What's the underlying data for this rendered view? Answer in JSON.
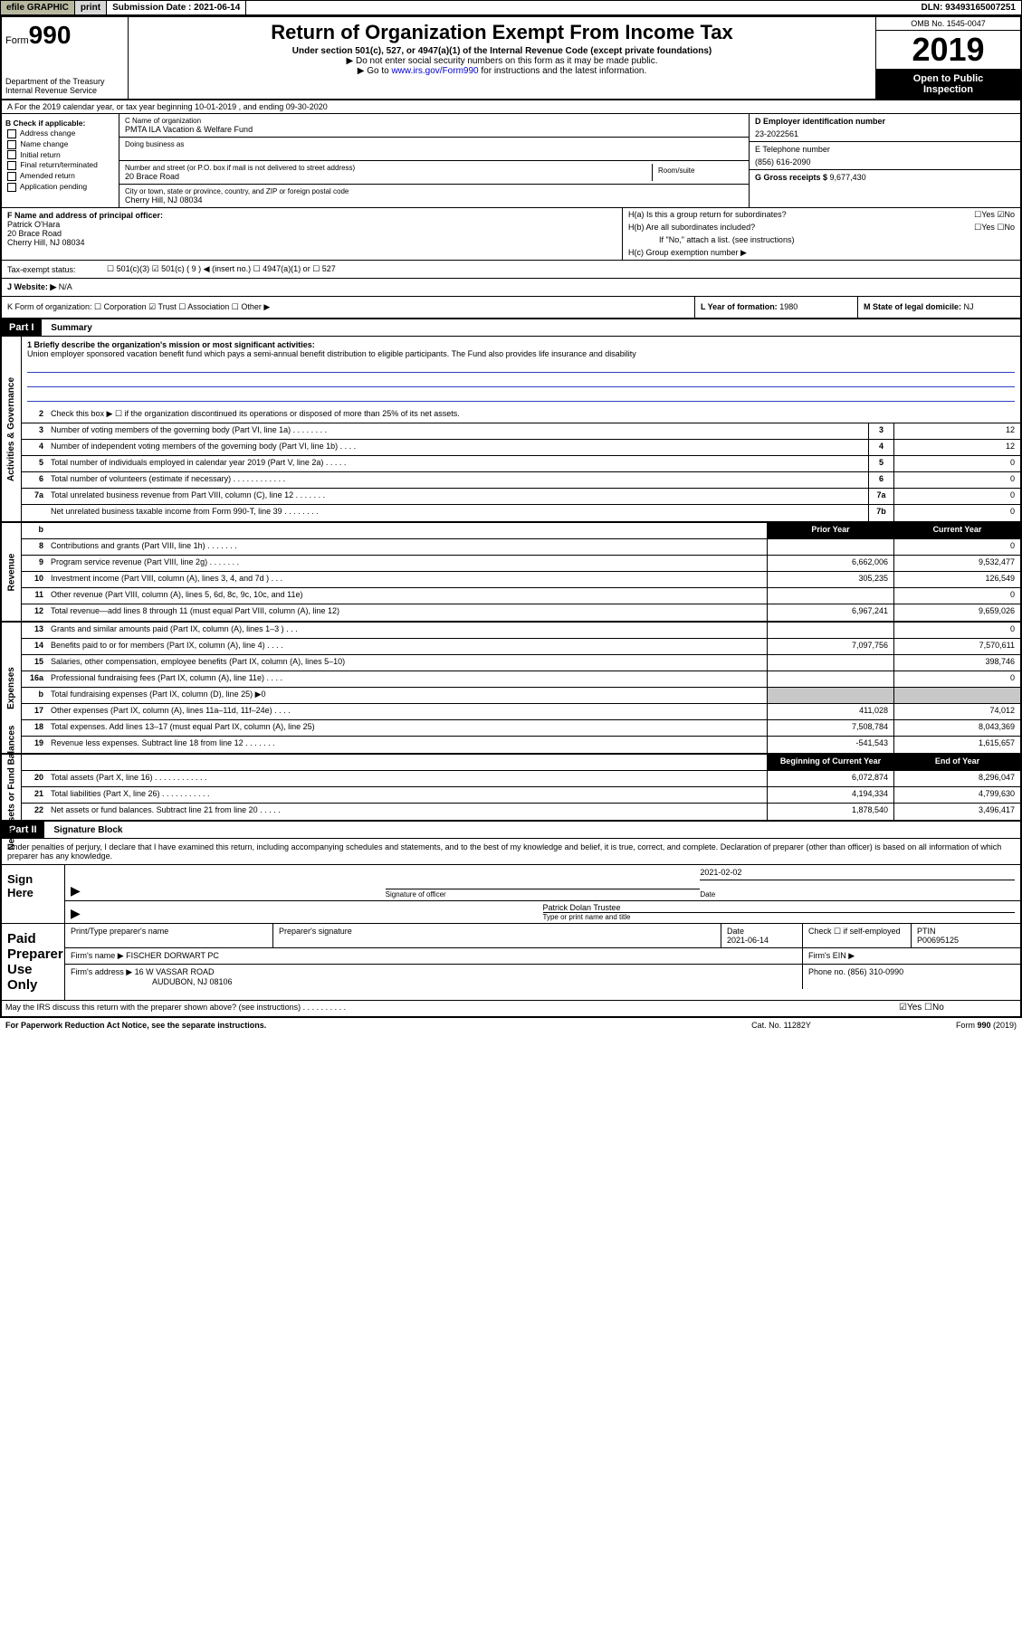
{
  "topbar": {
    "efile": "efile GRAPHIC",
    "print": "print",
    "submission": "Submission Date : 2021-06-14",
    "dln": "DLN: 93493165007251"
  },
  "header": {
    "form_prefix": "Form",
    "form_num": "990",
    "dept1": "Department of the Treasury",
    "dept2": "Internal Revenue Service",
    "title": "Return of Organization Exempt From Income Tax",
    "sub1": "Under section 501(c), 527, or 4947(a)(1) of the Internal Revenue Code (except private foundations)",
    "sub2": "▶ Do not enter social security numbers on this form as it may be made public.",
    "sub3_pre": "▶ Go to ",
    "sub3_link": "www.irs.gov/Form990",
    "sub3_post": " for instructions and the latest information.",
    "omb": "OMB No. 1545-0047",
    "year": "2019",
    "inspect1": "Open to Public",
    "inspect2": "Inspection"
  },
  "row_a": "A For the 2019 calendar year, or tax year beginning 10-01-2019    , and ending 09-30-2020",
  "col_b": {
    "hdr": "B Check if applicable:",
    "items": [
      "Address change",
      "Name change",
      "Initial return",
      "Final return/terminated",
      "Amended return",
      "Application pending"
    ]
  },
  "col_c": {
    "name_lbl": "C Name of organization",
    "name": "PMTA ILA Vacation & Welfare Fund",
    "dba_lbl": "Doing business as",
    "addr_lbl": "Number and street (or P.O. box if mail is not delivered to street address)",
    "room_lbl": "Room/suite",
    "addr": "20 Brace Road",
    "city_lbl": "City or town, state or province, country, and ZIP or foreign postal code",
    "city": "Cherry Hill, NJ  08034"
  },
  "col_de": {
    "d_lbl": "D Employer identification number",
    "d_val": "23-2022561",
    "e_lbl": "E Telephone number",
    "e_val": "(856) 616-2090",
    "g_lbl": "G Gross receipts $ ",
    "g_val": "9,677,430"
  },
  "col_f": {
    "lbl": "F  Name and address of principal officer:",
    "name": "Patrick O'Hara",
    "addr1": "20 Brace Road",
    "addr2": "Cherry Hill, NJ  08034"
  },
  "col_h": {
    "ha": "H(a)  Is this a group return for subordinates?",
    "ha_yn": "☐Yes ☑No",
    "hb": "H(b)  Are all subordinates included?",
    "hb_yn": "☐Yes  ☐No",
    "hb_note": "If \"No,\" attach a list. (see instructions)",
    "hc": "H(c)  Group exemption number ▶"
  },
  "tax_status": {
    "lbl": "Tax-exempt status:",
    "opts": "☐ 501(c)(3)   ☑ 501(c) ( 9 ) ◀ (insert no.)   ☐ 4947(a)(1) or  ☐ 527"
  },
  "website": {
    "lbl": "J Website: ▶",
    "val": "N/A"
  },
  "klm": {
    "k": "K Form of organization:  ☐ Corporation  ☑ Trust  ☐ Association  ☐ Other ▶",
    "l_lbl": "L Year of formation: ",
    "l_val": "1980",
    "m_lbl": "M State of legal domicile: ",
    "m_val": "NJ"
  },
  "part1": {
    "hdr": "Part I",
    "title": "Summary",
    "mission_lbl": "1  Briefly describe the organization's mission or most significant activities:",
    "mission": "Union employer sponsored vacation benefit fund which pays a semi-annual benefit distribution to eligible participants. The Fund also provides life insurance and disability",
    "line2": "Check this box ▶ ☐  if the organization discontinued its operations or disposed of more than 25% of its net assets.",
    "gov_lines": [
      {
        "n": "3",
        "d": "Number of voting members of the governing body (Part VI, line 1a)  .   .   .   .   .   .   .   .",
        "b": "3",
        "v": "12"
      },
      {
        "n": "4",
        "d": "Number of independent voting members of the governing body (Part VI, line 1b)  .   .   .   .",
        "b": "4",
        "v": "12"
      },
      {
        "n": "5",
        "d": "Total number of individuals employed in calendar year 2019 (Part V, line 2a)  .   .   .   .   .",
        "b": "5",
        "v": "0"
      },
      {
        "n": "6",
        "d": "Total number of volunteers (estimate if necessary)   .   .   .   .   .   .   .   .   .   .   .   .",
        "b": "6",
        "v": "0"
      },
      {
        "n": "7a",
        "d": "Total unrelated business revenue from Part VIII, column (C), line 12   .   .   .   .   .   .   .",
        "b": "7a",
        "v": "0"
      },
      {
        "n": "",
        "d": "Net unrelated business taxable income from Form 990-T, line 39   .   .   .   .   .   .   .   .",
        "b": "7b",
        "v": "0"
      }
    ],
    "col_hdrs": {
      "prior": "Prior Year",
      "current": "Current Year"
    },
    "rev_lines": [
      {
        "n": "8",
        "d": "Contributions and grants (Part VIII, line 1h)   .   .   .   .   .   .   .",
        "p": "",
        "c": "0"
      },
      {
        "n": "9",
        "d": "Program service revenue (Part VIII, line 2g)   .   .   .   .   .   .   .",
        "p": "6,662,006",
        "c": "9,532,477"
      },
      {
        "n": "10",
        "d": "Investment income (Part VIII, column (A), lines 3, 4, and 7d )   .   .   .",
        "p": "305,235",
        "c": "126,549"
      },
      {
        "n": "11",
        "d": "Other revenue (Part VIII, column (A), lines 5, 6d, 8c, 9c, 10c, and 11e)",
        "p": "",
        "c": "0"
      },
      {
        "n": "12",
        "d": "Total revenue—add lines 8 through 11 (must equal Part VIII, column (A), line 12)",
        "p": "6,967,241",
        "c": "9,659,026"
      }
    ],
    "exp_lines": [
      {
        "n": "13",
        "d": "Grants and similar amounts paid (Part IX, column (A), lines 1–3 )   .   .   .",
        "p": "",
        "c": "0"
      },
      {
        "n": "14",
        "d": "Benefits paid to or for members (Part IX, column (A), line 4)   .   .   .   .",
        "p": "7,097,756",
        "c": "7,570,611"
      },
      {
        "n": "15",
        "d": "Salaries, other compensation, employee benefits (Part IX, column (A), lines 5–10)",
        "p": "",
        "c": "398,746"
      },
      {
        "n": "16a",
        "d": "Professional fundraising fees (Part IX, column (A), line 11e)   .   .   .   .",
        "p": "",
        "c": "0"
      },
      {
        "n": "b",
        "d": "Total fundraising expenses (Part IX, column (D), line 25) ▶0",
        "p": "shade",
        "c": "shade"
      },
      {
        "n": "17",
        "d": "Other expenses (Part IX, column (A), lines 11a–11d, 11f–24e)   .   .   .   .",
        "p": "411,028",
        "c": "74,012"
      },
      {
        "n": "18",
        "d": "Total expenses. Add lines 13–17 (must equal Part IX, column (A), line 25)",
        "p": "7,508,784",
        "c": "8,043,369"
      },
      {
        "n": "19",
        "d": "Revenue less expenses. Subtract line 18 from line 12 .   .   .   .   .   .   .",
        "p": "-541,543",
        "c": "1,615,657"
      }
    ],
    "na_hdrs": {
      "beg": "Beginning of Current Year",
      "end": "End of Year"
    },
    "na_lines": [
      {
        "n": "20",
        "d": "Total assets (Part X, line 16)   .   .   .   .   .   .   .   .   .   .   .   .",
        "p": "6,072,874",
        "c": "8,296,047"
      },
      {
        "n": "21",
        "d": "Total liabilities (Part X, line 26)   .   .   .   .   .   .   .   .   .   .   .",
        "p": "4,194,334",
        "c": "4,799,630"
      },
      {
        "n": "22",
        "d": "Net assets or fund balances. Subtract line 21 from line 20   .   .   .   .   .",
        "p": "1,878,540",
        "c": "3,496,417"
      }
    ]
  },
  "part2": {
    "hdr": "Part II",
    "title": "Signature Block",
    "intro": "Under penalties of perjury, I declare that I have examined this return, including accompanying schedules and statements, and to the best of my knowledge and belief, it is true, correct, and complete. Declaration of preparer (other than officer) is based on all information of which preparer has any knowledge.",
    "sign_here": "Sign Here",
    "sig_officer_lbl": "Signature of officer",
    "sig_date": "2021-02-02",
    "sig_date_lbl": "Date",
    "sig_name": "Patrick Dolan  Trustee",
    "sig_name_lbl": "Type or print name and title",
    "paid": "Paid Preparer Use Only",
    "prep_name_lbl": "Print/Type preparer's name",
    "prep_sig_lbl": "Preparer's signature",
    "prep_date_lbl": "Date",
    "prep_date": "2021-06-14",
    "prep_check": "Check ☐  if self-employed",
    "ptin_lbl": "PTIN",
    "ptin": "P00695125",
    "firm_name_lbl": "Firm's name    ▶ ",
    "firm_name": "FISCHER DORWART PC",
    "firm_ein_lbl": "Firm's EIN ▶",
    "firm_addr_lbl": "Firm's address ▶ ",
    "firm_addr1": "16 W VASSAR ROAD",
    "firm_addr2": "AUDUBON, NJ  08106",
    "firm_phone_lbl": "Phone no. ",
    "firm_phone": "(856) 310-0990",
    "discuss": "May the IRS discuss this return with the preparer shown above? (see instructions)   .   .   .   .   .   .   .   .   .   .",
    "discuss_yn": "☑Yes  ☐No"
  },
  "footer": {
    "pra": "For Paperwork Reduction Act Notice, see the separate instructions.",
    "cat": "Cat. No. 11282Y",
    "form": "Form 990 (2019)"
  },
  "side_labels": {
    "gov": "Activities & Governance",
    "rev": "Revenue",
    "exp": "Expenses",
    "na": "Net Assets or Fund Balances"
  }
}
